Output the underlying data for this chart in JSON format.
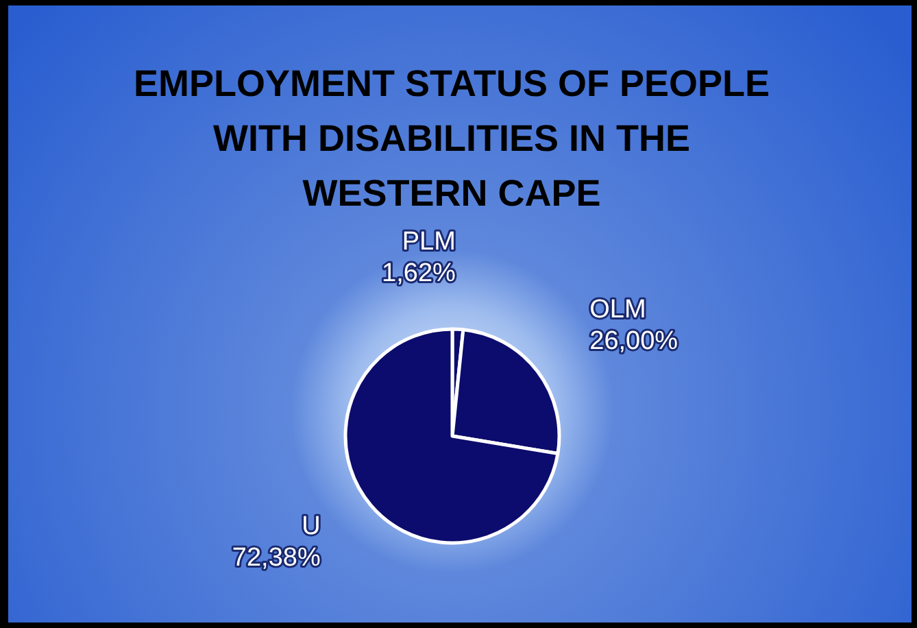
{
  "chart_data": {
    "type": "pie",
    "title": "EMPLOYMENT STATUS OF PEOPLE WITH DISABILITIES IN THE WESTERN CAPE",
    "categories": [
      "PLM",
      "OLM",
      "U"
    ],
    "values": [
      1.62,
      26.0,
      72.38
    ],
    "value_labels": [
      "1,62%",
      "26,00%",
      "72,38%"
    ],
    "colors": [
      "#0c0c6e",
      "#0c0c6e",
      "#0c0c6e"
    ]
  }
}
